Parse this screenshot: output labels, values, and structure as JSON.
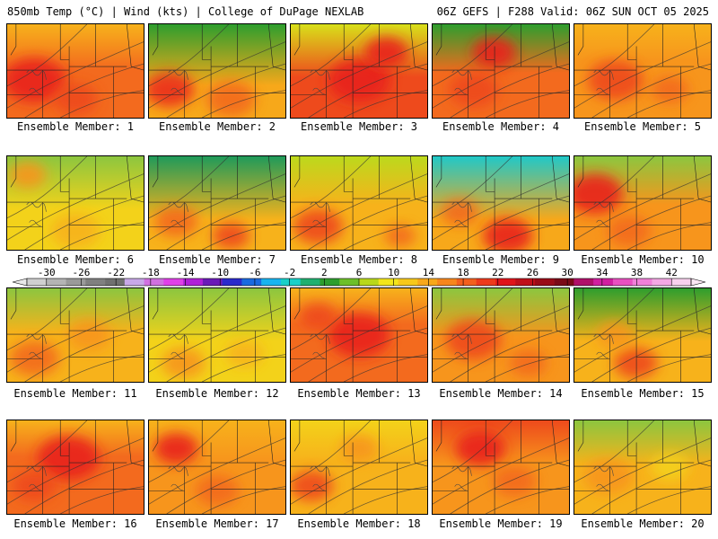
{
  "header": {
    "left": "850mb Temp (°C) | Wind (kts) | College of DuPage NEXLAB",
    "right": "06Z GEFS | F288 Valid: 06Z SUN OCT 05 2025"
  },
  "caption_prefix": "Ensemble Member:",
  "members": [
    {
      "label": "Ensemble Member: 1",
      "base": "#f36a1e",
      "north": "#f7b21b",
      "nstrength": 0.5,
      "hot": [
        [
          0.2,
          0.6,
          0.5,
          "#e8241a"
        ],
        [
          0.5,
          0.8,
          0.35,
          "#ee4a1c"
        ]
      ]
    },
    {
      "label": "Ensemble Member: 2",
      "base": "#f7a81a",
      "north": "#2e9e2e",
      "nstrength": 0.9,
      "hot": [
        [
          0.15,
          0.7,
          0.4,
          "#ea2e1a"
        ],
        [
          0.6,
          0.8,
          0.4,
          "#f36a1e"
        ]
      ]
    },
    {
      "label": "Ensemble Member: 3",
      "base": "#ee4a1c",
      "north": "#d8e01a",
      "nstrength": 0.7,
      "hot": [
        [
          0.5,
          0.6,
          0.5,
          "#e8241a"
        ],
        [
          0.7,
          0.3,
          0.35,
          "#e8241a"
        ]
      ]
    },
    {
      "label": "Ensemble Member: 4",
      "base": "#f36a1e",
      "north": "#2e9e2e",
      "nstrength": 0.6,
      "hot": [
        [
          0.45,
          0.3,
          0.35,
          "#e8241a"
        ],
        [
          0.3,
          0.7,
          0.4,
          "#ee4a1c"
        ]
      ]
    },
    {
      "label": "Ensemble Member: 5",
      "base": "#f7951c",
      "north": "#f7b21b",
      "nstrength": 0.3,
      "hot": [
        [
          0.3,
          0.6,
          0.45,
          "#ee4a1c"
        ],
        [
          0.7,
          0.7,
          0.3,
          "#f36a1e"
        ]
      ]
    },
    {
      "label": "Ensemble Member: 6",
      "base": "#f3d21a",
      "north": "#8cc63f",
      "nstrength": 0.7,
      "hot": [
        [
          0.15,
          0.2,
          0.3,
          "#f7951c"
        ],
        [
          0.5,
          0.8,
          0.4,
          "#f7b21b"
        ]
      ]
    },
    {
      "label": "Ensemble Member: 7",
      "base": "#f7b21b",
      "north": "#1f9a5a",
      "nstrength": 0.95,
      "hot": [
        [
          0.2,
          0.7,
          0.35,
          "#f36a1e"
        ],
        [
          0.6,
          0.85,
          0.3,
          "#ee4a1c"
        ]
      ]
    },
    {
      "label": "Ensemble Member: 8",
      "base": "#f7b21b",
      "north": "#bcd91c",
      "nstrength": 0.6,
      "hot": [
        [
          0.2,
          0.75,
          0.4,
          "#ee4a1c"
        ],
        [
          0.8,
          0.85,
          0.25,
          "#f36a1e"
        ]
      ]
    },
    {
      "label": "Ensemble Member: 9",
      "base": "#f7a81a",
      "north": "#20c8c8",
      "nstrength": 0.95,
      "hot": [
        [
          0.55,
          0.85,
          0.4,
          "#e8241a"
        ],
        [
          0.2,
          0.6,
          0.3,
          "#f36a1e"
        ]
      ]
    },
    {
      "label": "Ensemble Member: 10",
      "base": "#f7951c",
      "north": "#8cc63f",
      "nstrength": 0.6,
      "hot": [
        [
          0.15,
          0.4,
          0.45,
          "#e8241a"
        ],
        [
          0.4,
          0.8,
          0.35,
          "#f36a1e"
        ]
      ]
    },
    {
      "label": "Ensemble Member: 11",
      "base": "#f7b21b",
      "north": "#8cc63f",
      "nstrength": 0.5,
      "hot": [
        [
          0.2,
          0.75,
          0.4,
          "#f36a1e"
        ],
        [
          0.6,
          0.5,
          0.35,
          "#f7951c"
        ]
      ]
    },
    {
      "label": "Ensemble Member: 12",
      "base": "#f3d21a",
      "north": "#8cc63f",
      "nstrength": 0.7,
      "hot": [
        [
          0.25,
          0.8,
          0.35,
          "#f7951c"
        ],
        [
          0.7,
          0.7,
          0.3,
          "#f7b21b"
        ]
      ]
    },
    {
      "label": "Ensemble Member: 13",
      "base": "#f36a1e",
      "north": "#f7b21b",
      "nstrength": 0.3,
      "hot": [
        [
          0.5,
          0.5,
          0.5,
          "#e8241a"
        ],
        [
          0.2,
          0.3,
          0.3,
          "#ee4a1c"
        ]
      ]
    },
    {
      "label": "Ensemble Member: 14",
      "base": "#f7951c",
      "north": "#8cc63f",
      "nstrength": 0.6,
      "hot": [
        [
          0.3,
          0.55,
          0.45,
          "#ee4a1c"
        ],
        [
          0.7,
          0.8,
          0.3,
          "#f36a1e"
        ]
      ]
    },
    {
      "label": "Ensemble Member: 15",
      "base": "#f7b21b",
      "north": "#2e9e2e",
      "nstrength": 0.7,
      "hot": [
        [
          0.45,
          0.8,
          0.35,
          "#ee4a1c"
        ],
        [
          0.3,
          0.5,
          0.3,
          "#f7951c"
        ]
      ]
    },
    {
      "label": "Ensemble Member: 16",
      "base": "#f36a1e",
      "north": "#f7b21b",
      "nstrength": 0.3,
      "hot": [
        [
          0.45,
          0.4,
          0.5,
          "#e8241a"
        ],
        [
          0.2,
          0.7,
          0.35,
          "#ee4a1c"
        ]
      ]
    },
    {
      "label": "Ensemble Member: 17",
      "base": "#f7951c",
      "north": "#f7b21b",
      "nstrength": 0.4,
      "hot": [
        [
          0.2,
          0.3,
          0.35,
          "#e8241a"
        ],
        [
          0.5,
          0.75,
          0.35,
          "#f36a1e"
        ]
      ]
    },
    {
      "label": "Ensemble Member: 18",
      "base": "#f7b21b",
      "north": "#f3d21a",
      "nstrength": 0.4,
      "hot": [
        [
          0.15,
          0.7,
          0.35,
          "#ee4a1c"
        ],
        [
          0.5,
          0.3,
          0.3,
          "#f7951c"
        ]
      ]
    },
    {
      "label": "Ensemble Member: 19",
      "base": "#f7951c",
      "north": "#ee4a1c",
      "nstrength": 0.5,
      "hot": [
        [
          0.35,
          0.3,
          0.4,
          "#e8241a"
        ],
        [
          0.6,
          0.65,
          0.35,
          "#f36a1e"
        ]
      ]
    },
    {
      "label": "Ensemble Member: 20",
      "base": "#f7b21b",
      "north": "#8cc63f",
      "nstrength": 0.5,
      "hot": [
        [
          0.25,
          0.6,
          0.4,
          "#f7951c"
        ],
        [
          0.7,
          0.5,
          0.3,
          "#f3d21a"
        ]
      ]
    }
  ],
  "colorbar": {
    "ticks": [
      "-30",
      "-26",
      "-22",
      "-18",
      "-14",
      "-10",
      "-6",
      "-2",
      "2",
      "6",
      "10",
      "14",
      "18",
      "22",
      "26",
      "30",
      "34",
      "38",
      "42"
    ],
    "colors": [
      "#cfcfcf",
      "#b4b4b4",
      "#9a9a9a",
      "#808080",
      "#707070",
      "#c8a8e8",
      "#d070e0",
      "#e040e8",
      "#b020d8",
      "#6a1ab8",
      "#2a2acc",
      "#1a6ae0",
      "#18b4f0",
      "#18d0c8",
      "#20b070",
      "#2e9e2e",
      "#6cbf2a",
      "#b8d81a",
      "#f3e61a",
      "#f7c81a",
      "#f7a81a",
      "#f7861c",
      "#f3601e",
      "#ee3a1c",
      "#e0141a",
      "#c0101a",
      "#9a0c18",
      "#7a0a18",
      "#b0106a",
      "#d020a0",
      "#e850c0",
      "#f080d8",
      "#f4a8e4",
      "#f8d0ee"
    ]
  }
}
